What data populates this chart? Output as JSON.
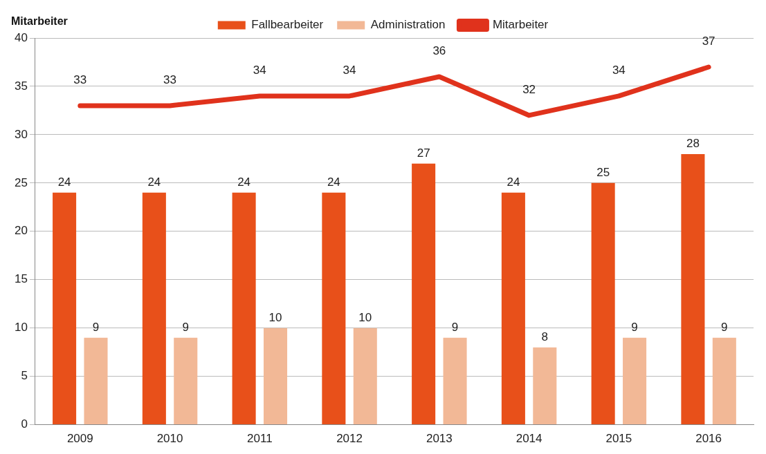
{
  "chart_data": {
    "type": "bar",
    "ylabel": "Mitarbeiter",
    "categories": [
      "2009",
      "2010",
      "2011",
      "2012",
      "2013",
      "2014",
      "2015",
      "2016"
    ],
    "series": [
      {
        "name": "Fallbearbeiter",
        "color": "#e8501a",
        "values": [
          24,
          24,
          24,
          24,
          27,
          24,
          25,
          28
        ]
      },
      {
        "name": "Administration",
        "color": "#f2b896",
        "values": [
          9,
          9,
          10,
          10,
          9,
          8,
          9,
          9
        ]
      },
      {
        "name": "Mitarbeiter",
        "type": "line",
        "color": "#e0321c",
        "values": [
          33,
          33,
          34,
          34,
          36,
          32,
          34,
          37
        ]
      }
    ],
    "ylim": [
      0,
      40
    ],
    "yticks": [
      0,
      5,
      10,
      15,
      20,
      25,
      30,
      35,
      40
    ],
    "grid": "y",
    "legend": "top",
    "data_labels": true
  }
}
